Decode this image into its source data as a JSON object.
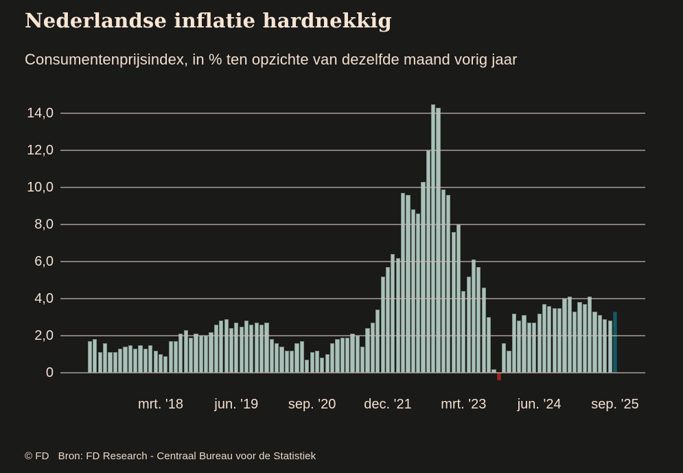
{
  "footer": {
    "copyright": "© FD",
    "source": "Bron: FD Research - Centraal Bureau voor de Statistiek"
  },
  "chart_data": {
    "type": "bar",
    "title": "Nederlandse inflatie hardnekkig",
    "subtitle": "Consumentenprijsindex, in % ten opzichte van dezelfde maand vorig jaar",
    "unit": "%",
    "grid": true,
    "x": [
      "jan '17",
      "feb '17",
      "mrt '17",
      "apr '17",
      "mei '17",
      "jun '17",
      "jul '17",
      "aug '17",
      "sep '17",
      "okt '17",
      "nov '17",
      "dec '17",
      "jan '18",
      "feb '18",
      "mrt '18",
      "apr '18",
      "mei '18",
      "jun '18",
      "jul '18",
      "aug '18",
      "sep '18",
      "okt '18",
      "nov '18",
      "dec '18",
      "jan '19",
      "feb '19",
      "mrt '19",
      "apr '19",
      "mei '19",
      "jun '19",
      "jul '19",
      "aug '19",
      "sep '19",
      "okt '19",
      "nov '19",
      "dec '19",
      "jan '20",
      "feb '20",
      "mrt '20",
      "apr '20",
      "mei '20",
      "jun '20",
      "jul '20",
      "aug '20",
      "sep '20",
      "okt '20",
      "nov '20",
      "dec '20",
      "jan '21",
      "feb '21",
      "mrt '21",
      "apr '21",
      "mei '21",
      "jun '21",
      "jul '21",
      "aug '21",
      "sep '21",
      "okt '21",
      "nov '21",
      "dec '21",
      "jan '22",
      "feb '22",
      "mrt '22",
      "apr '22",
      "mei '22",
      "jun '22",
      "jul '22",
      "aug '22",
      "sep '22",
      "okt '22",
      "nov '22",
      "dec '22",
      "jan '23",
      "feb '23",
      "mrt '23",
      "apr '23",
      "mei '23",
      "jun '23",
      "jul '23",
      "aug '23",
      "sep '23",
      "okt '23",
      "nov '23",
      "dec '23",
      "jan '24",
      "feb '24",
      "mrt '24",
      "apr '24",
      "mei '24",
      "jun '24",
      "jul '24",
      "aug '24",
      "sep '24",
      "okt '24",
      "nov '24",
      "dec '24",
      "jan '25",
      "feb '25",
      "mrt '25",
      "apr '25",
      "mei '25",
      "jun '25",
      "jul '25",
      "aug '25",
      "sep '25"
    ],
    "values": [
      1.7,
      1.8,
      1.1,
      1.6,
      1.1,
      1.1,
      1.3,
      1.4,
      1.5,
      1.3,
      1.5,
      1.3,
      1.5,
      1.2,
      1.0,
      0.9,
      1.7,
      1.7,
      2.1,
      2.3,
      1.9,
      2.1,
      2.0,
      2.0,
      2.2,
      2.6,
      2.8,
      2.9,
      2.4,
      2.7,
      2.5,
      2.8,
      2.6,
      2.7,
      2.6,
      2.7,
      1.8,
      1.6,
      1.4,
      1.2,
      1.2,
      1.6,
      1.7,
      0.7,
      1.1,
      1.2,
      0.8,
      1.0,
      1.6,
      1.8,
      1.9,
      1.9,
      2.1,
      2.0,
      1.4,
      2.4,
      2.7,
      3.4,
      5.2,
      5.7,
      6.4,
      6.2,
      9.7,
      9.6,
      8.8,
      8.6,
      10.3,
      12.0,
      14.5,
      14.3,
      9.9,
      9.6,
      7.6,
      8.0,
      4.4,
      5.2,
      6.1,
      5.7,
      4.6,
      3.0,
      0.2,
      -0.4,
      1.6,
      1.2,
      3.2,
      2.8,
      3.1,
      2.7,
      2.7,
      3.2,
      3.7,
      3.6,
      3.5,
      3.5,
      4.0,
      4.1,
      3.3,
      3.8,
      3.7,
      4.1,
      3.3,
      3.1,
      2.9,
      2.8,
      3.3
    ],
    "y_axis": {
      "range": [
        -0.75,
        15.0
      ],
      "ticks": [
        {
          "label": "14,0",
          "value": 14.0
        },
        {
          "label": "12,0",
          "value": 12.0
        },
        {
          "label": "10,0",
          "value": 10.0
        },
        {
          "label": "8,0",
          "value": 8.0
        },
        {
          "label": "6,0",
          "value": 6.0
        },
        {
          "label": "4,0",
          "value": 4.0
        },
        {
          "label": "2,0",
          "value": 2.0
        },
        {
          "label": "0",
          "value": 0.0
        }
      ]
    },
    "x_axis": {
      "ticks": [
        {
          "label": "mrt. '18",
          "month_index": 14
        },
        {
          "label": "jun. '19",
          "month_index": 29
        },
        {
          "label": "sep. '20",
          "month_index": 44
        },
        {
          "label": "dec. '21",
          "month_index": 59
        },
        {
          "label": "mrt. '23",
          "month_index": 74
        },
        {
          "label": "jun. '24",
          "month_index": 89
        },
        {
          "label": "sep. '25",
          "month_index": 104
        }
      ]
    },
    "colors": {
      "background": "#1a1a18",
      "bar": "#a9c1b9",
      "bar_negative": "#9d2721",
      "bar_highlight_last": "#135a66",
      "gridline": "#c9bdb3",
      "text": "#f1dfd0"
    },
    "highlight": {
      "last_bar_teal": true,
      "negative_bars_red": true
    }
  }
}
